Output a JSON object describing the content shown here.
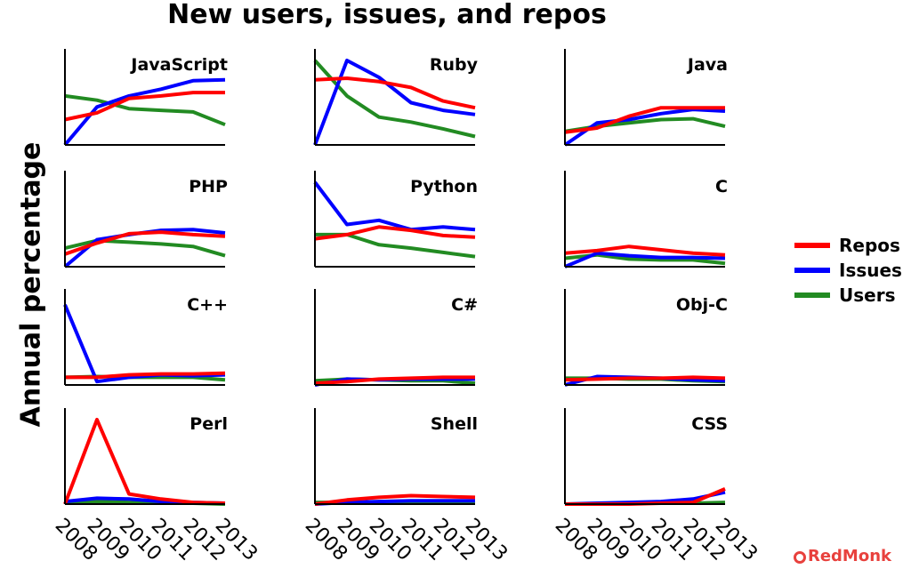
{
  "title": "New users, issues, and repos",
  "ylabel": "Annual percentage",
  "brand": "RedMonk",
  "chart_data": {
    "type": "line",
    "title": "New users, issues, and repos",
    "ylabel": "Annual percentage",
    "x": [
      2008,
      2009,
      2010,
      2011,
      2012,
      2013
    ],
    "ylim": [
      0,
      1
    ],
    "grid": false,
    "legend": "right",
    "series_names": [
      "Repos",
      "Issues",
      "Users"
    ],
    "series_colors": [
      "#ff0000",
      "#0000ff",
      "#228b22"
    ],
    "panels": [
      {
        "name": "JavaScript",
        "Repos": [
          0.3,
          0.38,
          0.55,
          0.58,
          0.62,
          0.62
        ],
        "Issues": [
          0.0,
          0.45,
          0.58,
          0.66,
          0.76,
          0.77
        ],
        "Users": [
          0.58,
          0.53,
          0.43,
          0.41,
          0.39,
          0.24
        ]
      },
      {
        "name": "Ruby",
        "Repos": [
          0.77,
          0.79,
          0.75,
          0.68,
          0.52,
          0.44
        ],
        "Issues": [
          0.0,
          1.0,
          0.8,
          0.5,
          0.41,
          0.36
        ],
        "Users": [
          1.0,
          0.58,
          0.33,
          0.27,
          0.19,
          0.1
        ]
      },
      {
        "name": "Java",
        "Repos": [
          0.15,
          0.2,
          0.34,
          0.44,
          0.44,
          0.44
        ],
        "Issues": [
          0.0,
          0.26,
          0.3,
          0.37,
          0.42,
          0.4
        ],
        "Users": [
          0.16,
          0.22,
          0.26,
          0.3,
          0.31,
          0.22
        ]
      },
      {
        "name": "PHP",
        "Repos": [
          0.15,
          0.28,
          0.39,
          0.41,
          0.38,
          0.36
        ],
        "Issues": [
          0.0,
          0.32,
          0.38,
          0.43,
          0.44,
          0.4
        ],
        "Users": [
          0.22,
          0.31,
          0.29,
          0.27,
          0.24,
          0.13
        ]
      },
      {
        "name": "Python",
        "Repos": [
          0.33,
          0.38,
          0.47,
          0.43,
          0.37,
          0.35
        ],
        "Issues": [
          1.0,
          0.5,
          0.55,
          0.44,
          0.47,
          0.44
        ],
        "Users": [
          0.38,
          0.38,
          0.26,
          0.22,
          0.17,
          0.12
        ]
      },
      {
        "name": "C",
        "Repos": [
          0.16,
          0.19,
          0.24,
          0.2,
          0.16,
          0.14
        ],
        "Issues": [
          0.0,
          0.16,
          0.13,
          0.11,
          0.11,
          0.1
        ],
        "Users": [
          0.1,
          0.14,
          0.09,
          0.08,
          0.08,
          0.04
        ]
      },
      {
        "name": "C++",
        "Repos": [
          0.09,
          0.09,
          0.12,
          0.13,
          0.13,
          0.14
        ],
        "Issues": [
          0.95,
          0.04,
          0.09,
          0.12,
          0.11,
          0.12
        ],
        "Users": [
          0.09,
          0.1,
          0.09,
          0.09,
          0.09,
          0.06
        ]
      },
      {
        "name": "C#",
        "Repos": [
          0.02,
          0.04,
          0.07,
          0.08,
          0.09,
          0.09
        ],
        "Issues": [
          0.0,
          0.07,
          0.06,
          0.07,
          0.07,
          0.07
        ],
        "Users": [
          0.05,
          0.07,
          0.06,
          0.05,
          0.05,
          0.02
        ]
      },
      {
        "name": "Obj-C",
        "Repos": [
          0.06,
          0.07,
          0.08,
          0.08,
          0.09,
          0.08
        ],
        "Issues": [
          0.0,
          0.1,
          0.09,
          0.08,
          0.06,
          0.05
        ],
        "Users": [
          0.08,
          0.08,
          0.07,
          0.07,
          0.05,
          0.04
        ]
      },
      {
        "name": "Perl",
        "Repos": [
          0.0,
          1.0,
          0.12,
          0.06,
          0.02,
          0.01
        ],
        "Issues": [
          0.03,
          0.07,
          0.06,
          0.03,
          0.02,
          0.01
        ],
        "Users": [
          0.02,
          0.03,
          0.02,
          0.01,
          0.01,
          0.0
        ]
      },
      {
        "name": "Shell",
        "Repos": [
          0.0,
          0.05,
          0.08,
          0.1,
          0.09,
          0.08
        ],
        "Issues": [
          0.0,
          0.02,
          0.03,
          0.04,
          0.04,
          0.04
        ],
        "Users": [
          0.02,
          0.02,
          0.02,
          0.02,
          0.02,
          0.01
        ]
      },
      {
        "name": "CSS",
        "Repos": [
          0.0,
          0.0,
          0.0,
          0.01,
          0.02,
          0.18
        ],
        "Issues": [
          0.0,
          0.01,
          0.02,
          0.03,
          0.06,
          0.14
        ],
        "Users": [
          0.0,
          0.0,
          0.01,
          0.01,
          0.01,
          0.02
        ]
      }
    ]
  }
}
